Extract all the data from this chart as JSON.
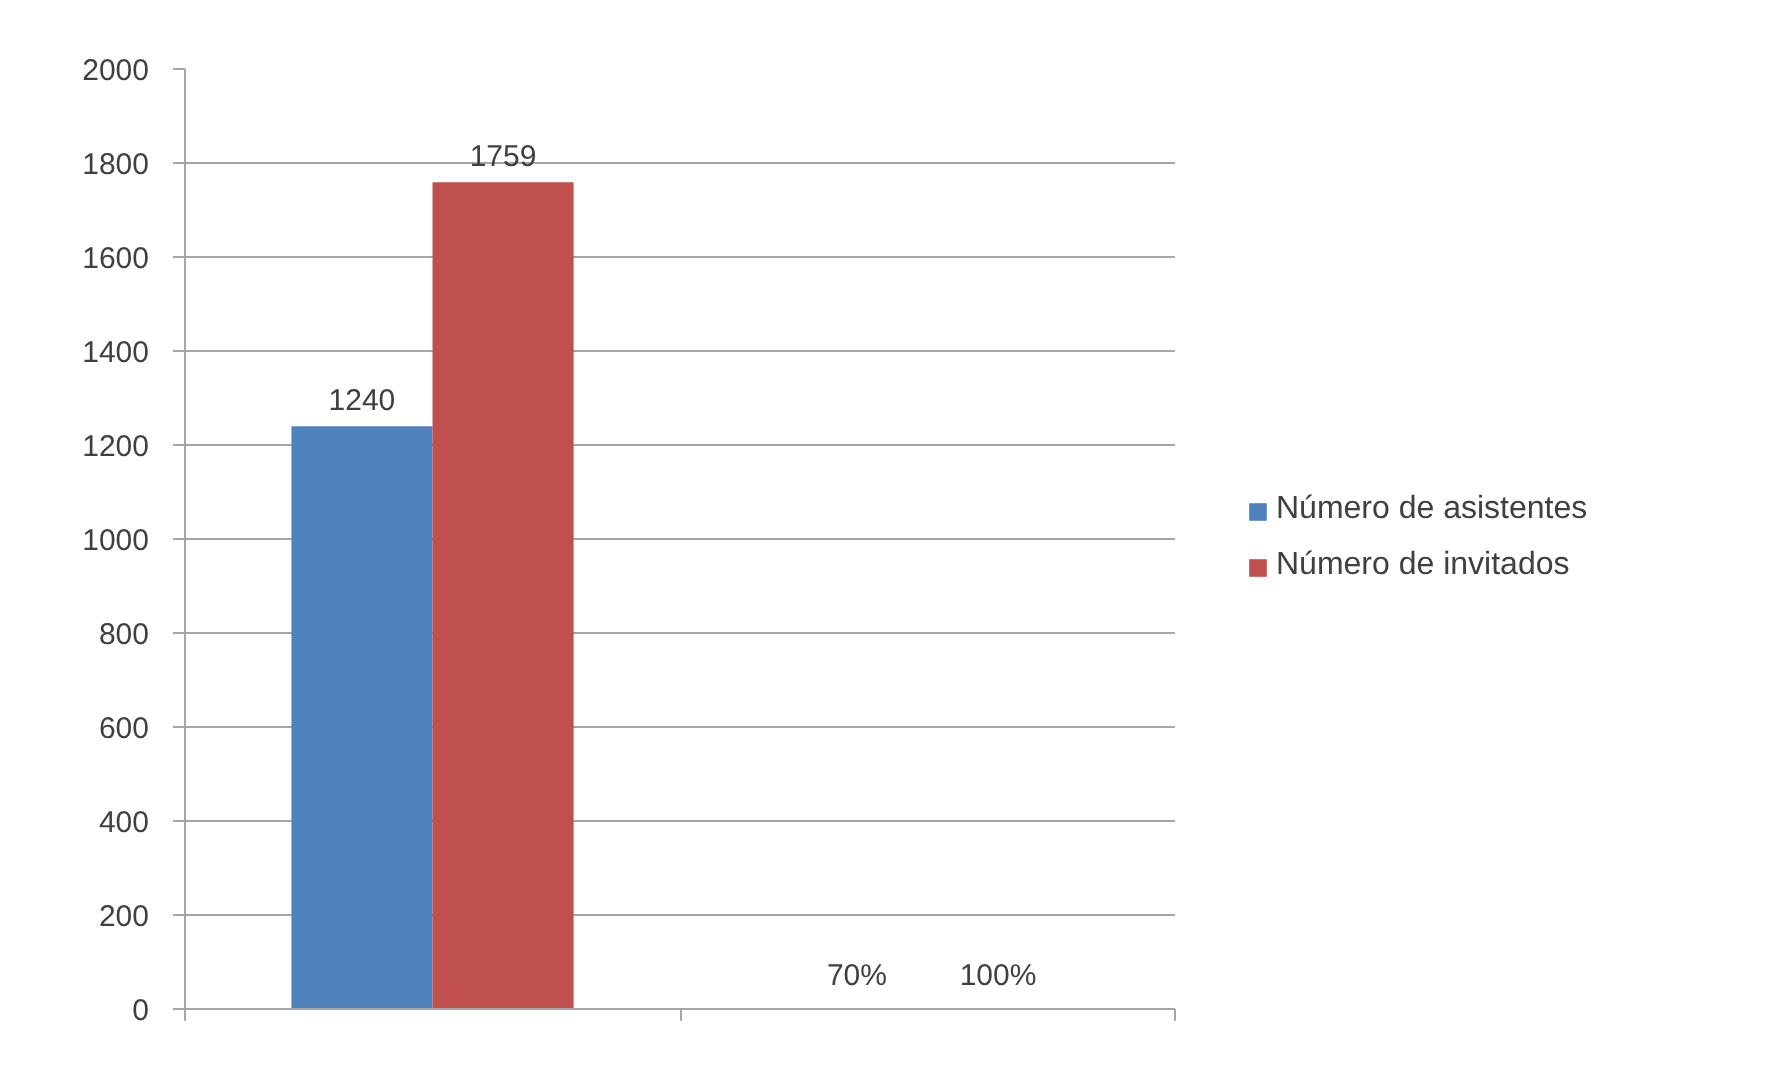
{
  "chart_data": {
    "type": "bar",
    "categories": [
      null,
      null
    ],
    "series": [
      {
        "name": "Número de asistentes",
        "color": "#4f81bd",
        "values": [
          1240,
          0.7
        ],
        "value_labels": [
          "1240",
          "70%"
        ]
      },
      {
        "name": "Número de invitados",
        "color": "#c0504d",
        "values": [
          1759,
          1
        ],
        "value_labels": [
          "1759",
          "100%"
        ]
      }
    ],
    "ylim": [
      0,
      2000
    ],
    "yticks": [
      0,
      200,
      400,
      600,
      800,
      1000,
      1200,
      1400,
      1600,
      1800,
      2000
    ],
    "grid": "y",
    "legend": "right",
    "tick_labels": "y"
  }
}
